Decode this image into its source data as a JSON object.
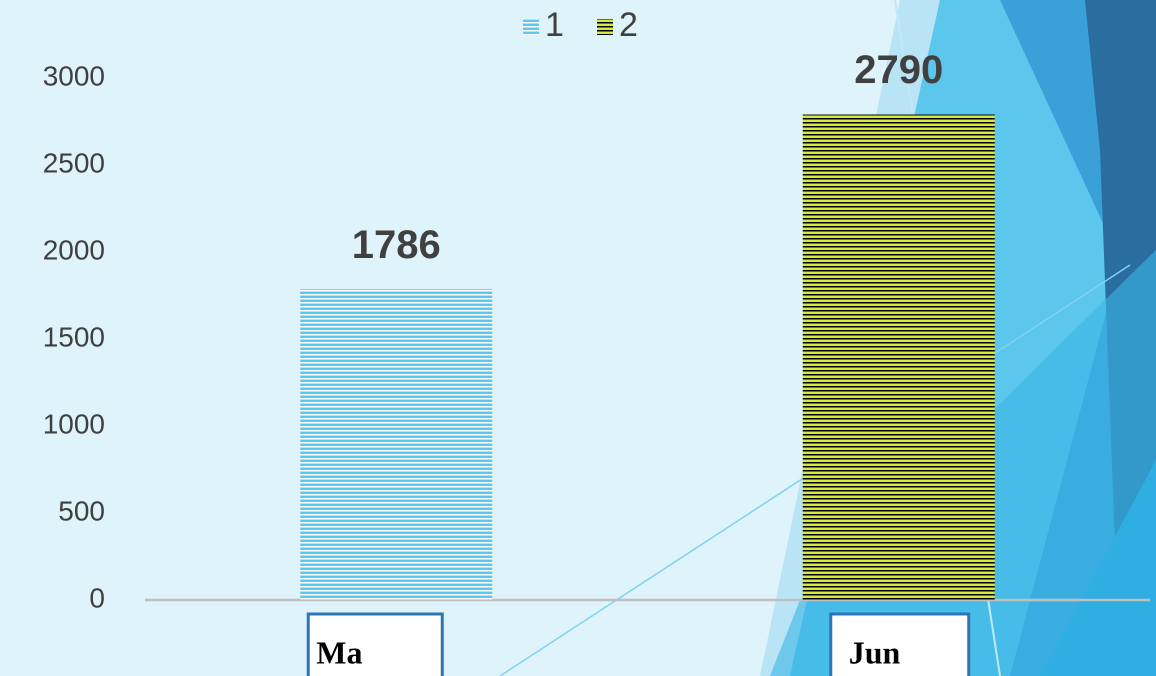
{
  "chart_data": {
    "type": "bar",
    "categories": [
      "Ma",
      "Jun"
    ],
    "series": [
      {
        "name": "1",
        "color": "#5bc8ef",
        "values": [
          1786,
          null
        ]
      },
      {
        "name": "2",
        "color": "#d6ea3c",
        "values": [
          null,
          2790
        ]
      }
    ],
    "ylim": [
      0,
      3000
    ],
    "yticks": [
      0,
      500,
      1000,
      1500,
      2000,
      2500,
      3000
    ],
    "legend": "top",
    "grid": false
  }
}
